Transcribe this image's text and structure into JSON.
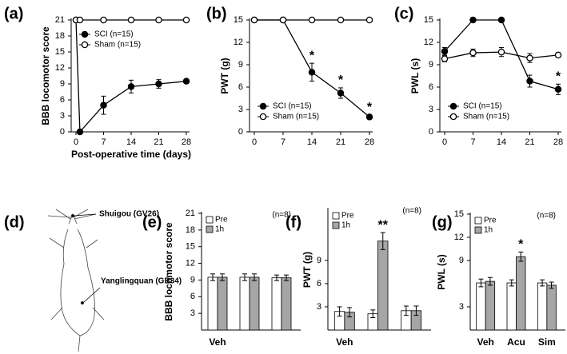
{
  "chart_data": [
    {
      "type": "line",
      "label": "(a)",
      "ylabel": "BBB locomotor score",
      "xlabel": "Post-operative time (days)",
      "xlim": [
        0,
        28
      ],
      "xticks": [
        0,
        7,
        14,
        21,
        28
      ],
      "ylim": [
        0,
        21
      ],
      "yticks": [
        0,
        3,
        6,
        9,
        12,
        15,
        18,
        21
      ],
      "legend": "upper left",
      "series": [
        {
          "name": "SCI (n=15)",
          "color": "#000000",
          "x": [
            0,
            1,
            7,
            14,
            21,
            28
          ],
          "values": [
            21,
            0,
            5,
            8.5,
            9,
            9.5
          ],
          "errors": [
            null,
            null,
            1.7,
            1.2,
            0.8,
            0.4
          ]
        },
        {
          "name": "Sham (n=15)",
          "color": "#ffffff",
          "x": [
            0,
            1,
            7,
            14,
            21,
            28
          ],
          "values": [
            21,
            21,
            21,
            21,
            21,
            21
          ],
          "errors": [
            null,
            null,
            null,
            null,
            null,
            null
          ]
        }
      ]
    },
    {
      "type": "line",
      "label": "(b)",
      "ylabel": "PWT (g)",
      "xlim": [
        0,
        28
      ],
      "xticks": [
        0,
        7,
        14,
        21,
        28
      ],
      "ylim": [
        0,
        15
      ],
      "yticks": [
        0,
        3,
        6,
        9,
        12,
        15
      ],
      "legend": "lower left",
      "series": [
        {
          "name": "SCI (n=15)",
          "color": "#000000",
          "x": [
            0,
            7,
            14,
            21,
            28
          ],
          "values": [
            15,
            15,
            8,
            5.2,
            2
          ],
          "errors": [
            null,
            null,
            1.2,
            0.7,
            0.3
          ],
          "significance": [
            null,
            null,
            "*",
            "*",
            "*"
          ]
        },
        {
          "name": "Sham (n=15)",
          "color": "#ffffff",
          "x": [
            0,
            7,
            14,
            21,
            28
          ],
          "values": [
            15,
            15,
            15,
            15,
            15
          ],
          "errors": [
            null,
            null,
            null,
            null,
            null
          ]
        }
      ]
    },
    {
      "type": "line",
      "label": "(c)",
      "ylabel": "PWL (s)",
      "xlim": [
        0,
        28
      ],
      "xticks": [
        0,
        7,
        14,
        21,
        28
      ],
      "ylim": [
        0,
        15
      ],
      "yticks": [
        0,
        3,
        6,
        9,
        12,
        15
      ],
      "legend": "lower left",
      "series": [
        {
          "name": "SCI (n=15)",
          "color": "#000000",
          "x": [
            0,
            7,
            14,
            21,
            28
          ],
          "values": [
            10.8,
            15,
            15,
            6.8,
            5.7
          ],
          "errors": [
            0.5,
            null,
            null,
            0.8,
            0.7
          ],
          "significance": [
            null,
            null,
            null,
            null,
            "*"
          ]
        },
        {
          "name": "Sham (n=15)",
          "color": "#ffffff",
          "x": [
            0,
            7,
            14,
            21,
            28
          ],
          "values": [
            9.8,
            10.6,
            10.7,
            9.9,
            10.3
          ],
          "errors": [
            0.4,
            0.5,
            0.6,
            0.6,
            0.3
          ]
        }
      ]
    },
    {
      "type": "bar",
      "label": "(e)",
      "ylabel": "BBB locomotor score",
      "annotation": "(n=8)",
      "categories": [
        "Veh",
        null,
        null
      ],
      "ylim": [
        0,
        21
      ],
      "yticks": [
        3,
        6,
        9,
        12,
        15,
        18,
        21
      ],
      "legend": "upper left",
      "series": [
        {
          "name": "Pre",
          "color": "#ffffff",
          "values": [
            9.5,
            9.5,
            9.4
          ],
          "errors": [
            0.6,
            0.6,
            0.5
          ]
        },
        {
          "name": "1h",
          "color": "#a6a6a6",
          "values": [
            9.5,
            9.5,
            9.4
          ],
          "errors": [
            0.6,
            0.6,
            0.5
          ]
        }
      ]
    },
    {
      "type": "bar",
      "label": "(f)",
      "ylabel": "PWT (g)",
      "annotation": "(n=8)",
      "categories": [
        "Veh",
        null,
        null
      ],
      "ylim": [
        0,
        15.6
      ],
      "yticks": [
        3,
        6,
        9
      ],
      "legend": "upper left",
      "series": [
        {
          "name": "Pre",
          "color": "#ffffff",
          "values": [
            2.4,
            2.1,
            2.5
          ],
          "errors": [
            0.6,
            0.5,
            0.6
          ]
        },
        {
          "name": "1h",
          "color": "#a6a6a6",
          "values": [
            2.3,
            11.5,
            2.5
          ],
          "errors": [
            0.6,
            1.1,
            0.6
          ],
          "significance": [
            null,
            "**",
            null
          ]
        }
      ]
    },
    {
      "type": "bar",
      "label": "(g)",
      "ylabel": "PWL (s)",
      "annotation": "(n=8)",
      "categories": [
        "Veh",
        "Acu",
        "Sim"
      ],
      "ylim": [
        0,
        15
      ],
      "yticks": [
        3,
        9,
        12,
        15
      ],
      "legend": "upper left",
      "series": [
        {
          "name": "Pre",
          "color": "#ffffff",
          "values": [
            6.1,
            6.1,
            6.1
          ],
          "errors": [
            0.5,
            0.4,
            0.4
          ]
        },
        {
          "name": "1h",
          "color": "#a6a6a6",
          "values": [
            6.3,
            9.5,
            5.8
          ],
          "errors": [
            0.5,
            0.6,
            0.4
          ],
          "significance": [
            null,
            "*",
            null
          ]
        }
      ]
    }
  ],
  "diagram": {
    "label": "(d)",
    "points": [
      "Shuigou (GV26)",
      "Yanglingquan (GB34)"
    ]
  }
}
